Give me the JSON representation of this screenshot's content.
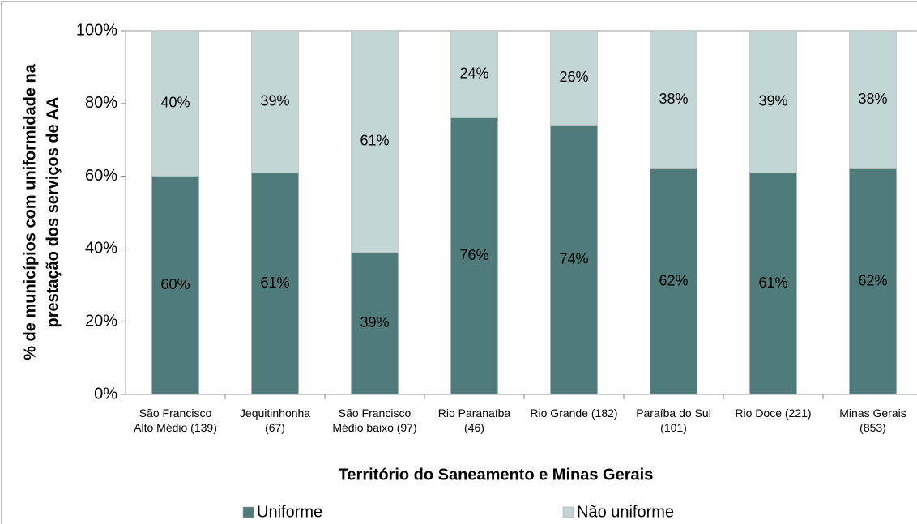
{
  "chart_data": {
    "type": "stacked_bar",
    "ylabel": [
      "% de municípios com uniformidade na",
      "prestação dos serviços de AA"
    ],
    "xlabel": "Território do Saneamento e Minas Gerais",
    "categories": [
      "São Francisco Alto Médio (139)",
      "Jequitinhonha (67)",
      "São Francisco Médio baixo (97)",
      "Rio Paranaíba (46)",
      "Rio Grande (182)",
      "Paraíba do Sul (101)",
      "Rio Doce (221)",
      "Minas Gerais (853)"
    ],
    "series": [
      {
        "name": "Uniforme",
        "color": "#4f7c7a",
        "values": [
          60,
          61,
          39,
          76,
          74,
          62,
          61,
          62
        ],
        "value_labels": [
          "60%",
          "61%",
          "39%",
          "76%",
          "74%",
          "62%",
          "61%",
          "62%"
        ]
      },
      {
        "name": "Não uniforme",
        "color": "#c2d6d6",
        "values": [
          40,
          39,
          61,
          24,
          26,
          38,
          39,
          38
        ],
        "value_labels": [
          "40%",
          "39%",
          "61%",
          "24%",
          "26%",
          "38%",
          "39%",
          "38%"
        ]
      }
    ],
    "ylim": [
      0,
      100
    ],
    "yticks": [
      {
        "value": 0,
        "label": "0%"
      },
      {
        "value": 20,
        "label": "20%"
      },
      {
        "value": 40,
        "label": "40%"
      },
      {
        "value": 60,
        "label": "60%"
      },
      {
        "value": 80,
        "label": "80%"
      },
      {
        "value": 100,
        "label": "100%"
      }
    ]
  }
}
